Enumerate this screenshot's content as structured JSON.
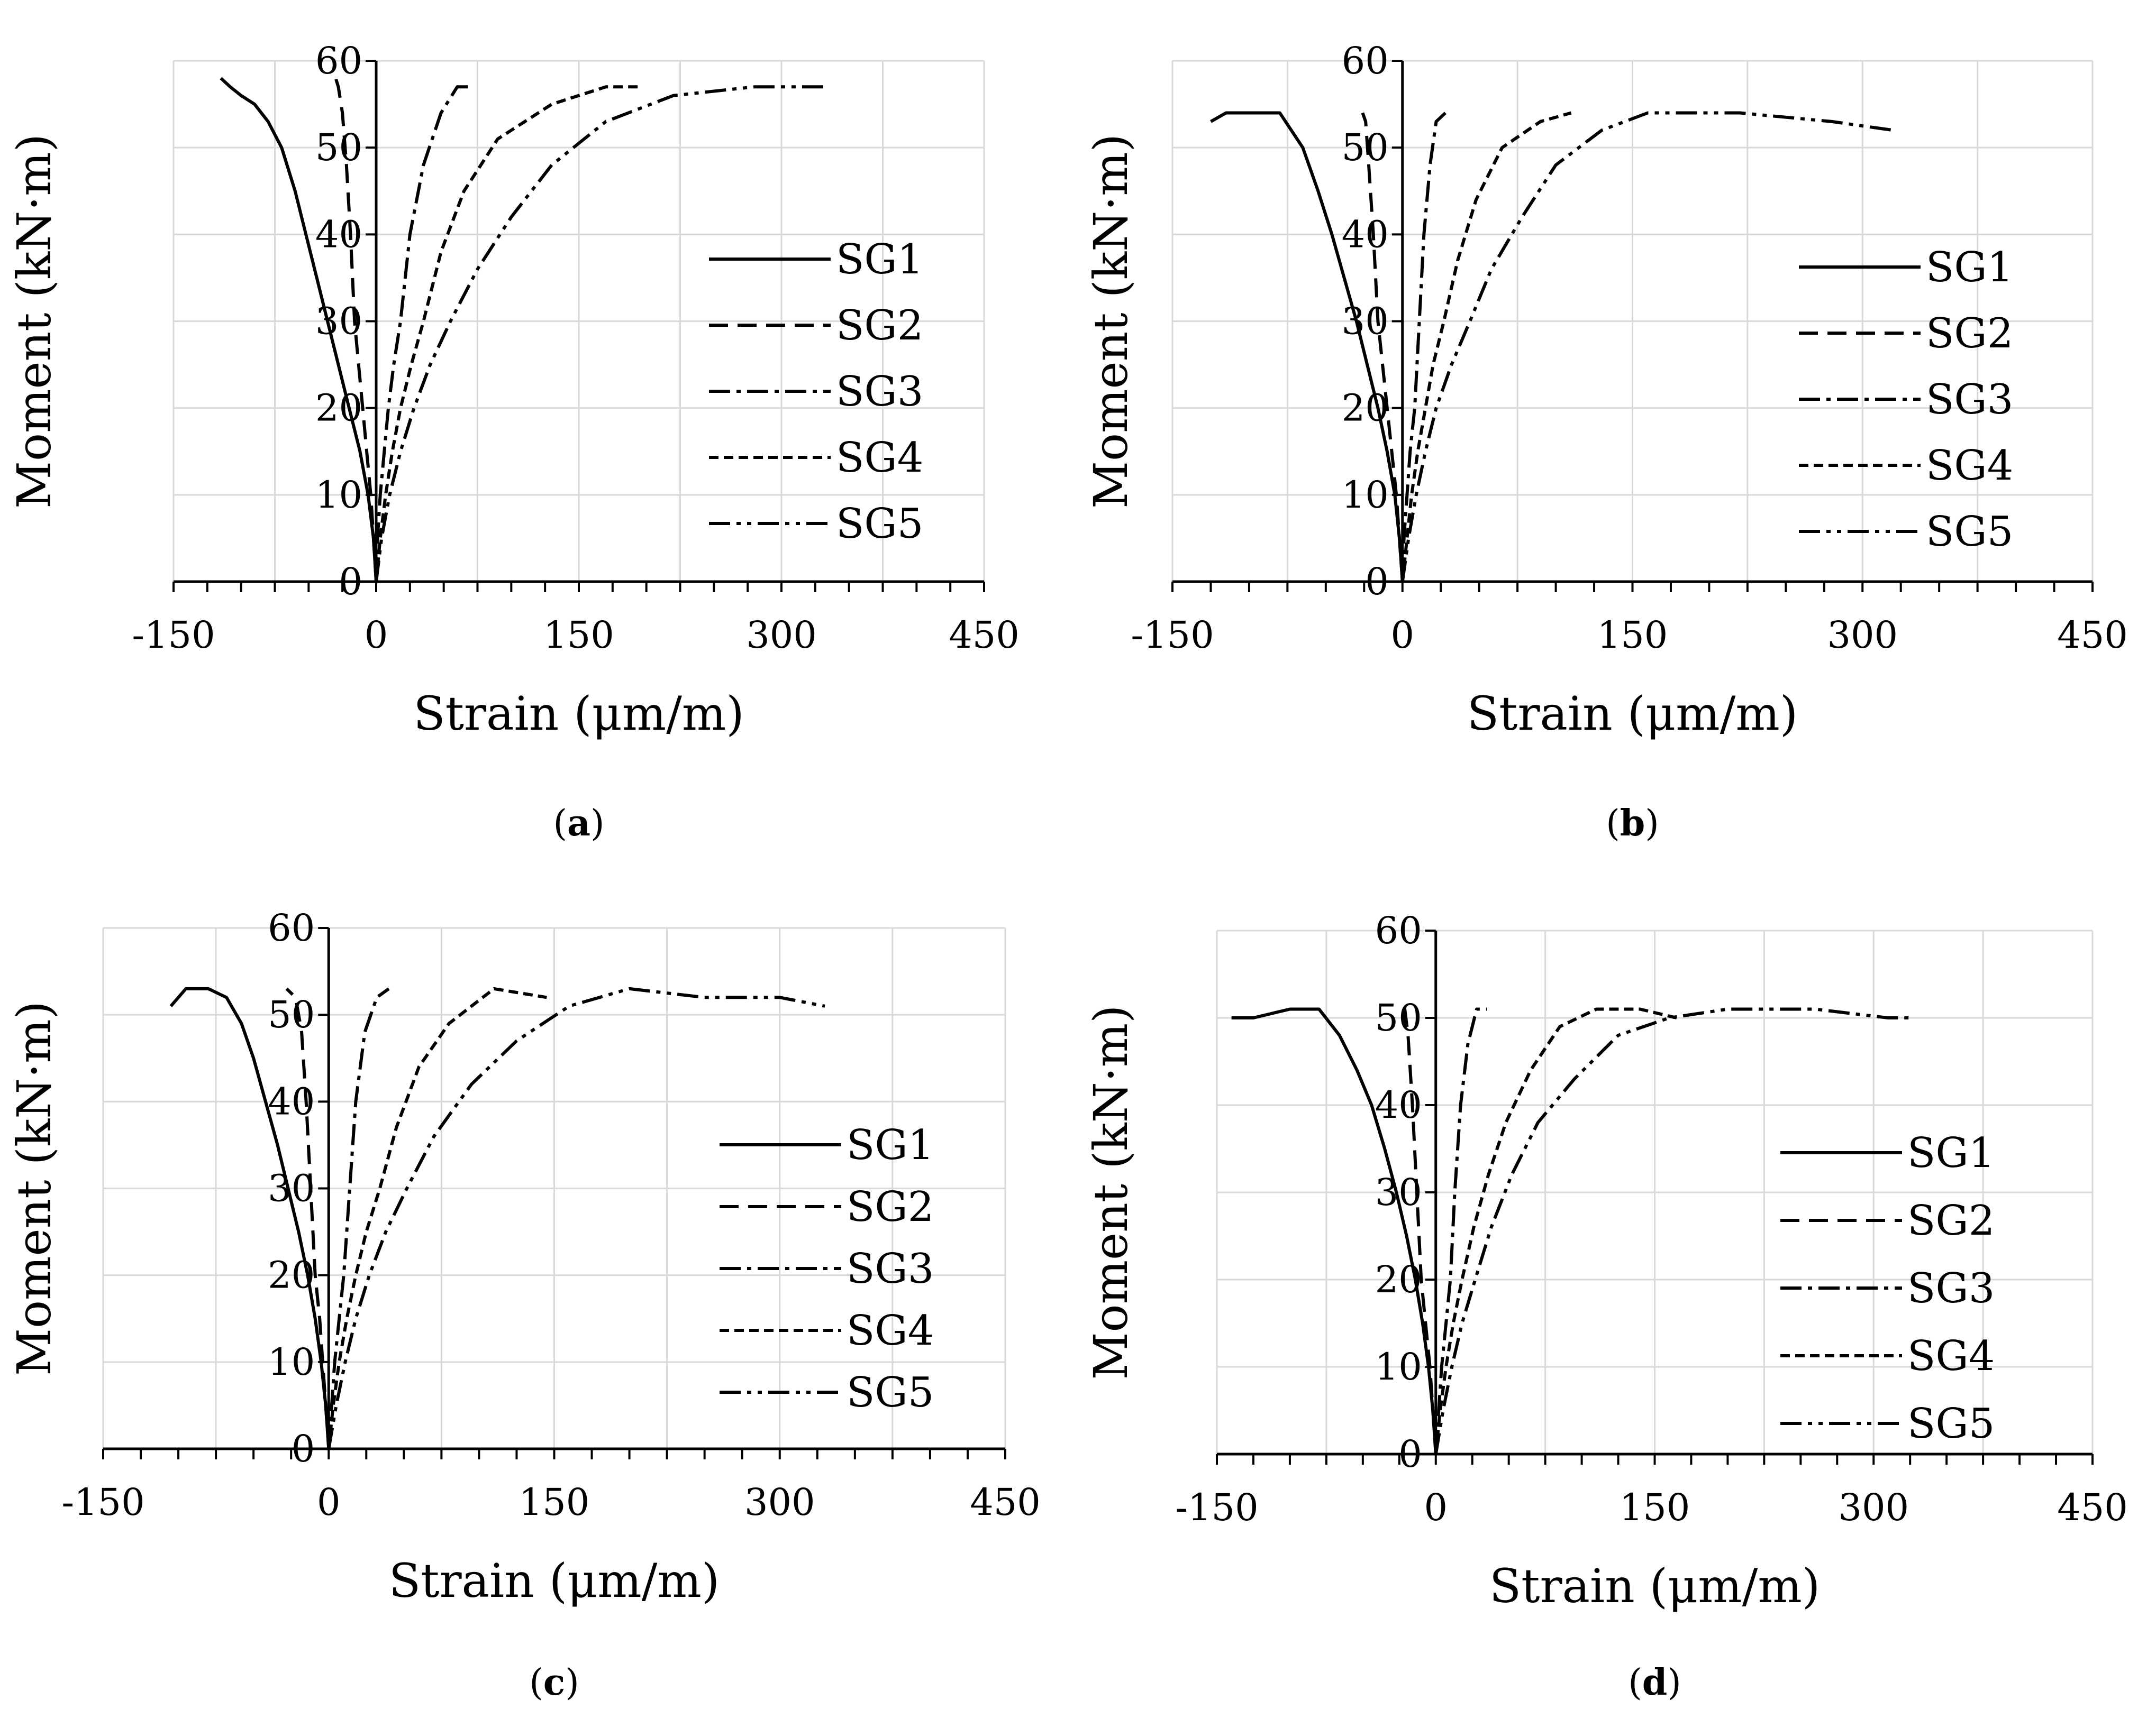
{
  "figure": {
    "panels": [
      "a",
      "b",
      "c",
      "d"
    ]
  },
  "chart_data": [
    {
      "panel": "a",
      "type": "line",
      "title": "",
      "panel_label_open": "(",
      "panel_label_letter": "a",
      "panel_label_close": ")",
      "xlabel": "Strain (μm/m)",
      "ylabel": "Moment (kN·m)",
      "xlim": [
        -150,
        450
      ],
      "ylim": [
        0,
        60
      ],
      "xticks": [
        -150,
        0,
        150,
        300,
        450
      ],
      "yticks": [
        0,
        10,
        20,
        30,
        40,
        50,
        60
      ],
      "grid": true,
      "legend_position": "right",
      "series": [
        {
          "name": "SG1",
          "style": "solid",
          "x": [
            0,
            -2,
            -6,
            -12,
            -20,
            -28,
            -36,
            -44,
            -52,
            -60,
            -70,
            -80,
            -90,
            -100,
            -108,
            -115
          ],
          "y": [
            0,
            5,
            10,
            15,
            20,
            25,
            30,
            35,
            40,
            45,
            50,
            53,
            55,
            56,
            57,
            58
          ]
        },
        {
          "name": "SG2",
          "style": "dash",
          "x": [
            0,
            -2,
            -4,
            -7,
            -10,
            -13,
            -16,
            -19,
            -22,
            -25,
            -28,
            -30
          ],
          "y": [
            0,
            5,
            10,
            15,
            20,
            25,
            30,
            40,
            48,
            54,
            57,
            58
          ]
        },
        {
          "name": "SG3",
          "style": "dashdot",
          "x": [
            0,
            1,
            3,
            6,
            9,
            13,
            18,
            25,
            35,
            48,
            60,
            70
          ],
          "y": [
            0,
            5,
            10,
            15,
            20,
            25,
            30,
            40,
            48,
            54,
            57,
            57
          ]
        },
        {
          "name": "SG4",
          "style": "shortdash",
          "x": [
            0,
            3,
            7,
            12,
            18,
            26,
            35,
            48,
            65,
            90,
            130,
            170,
            195
          ],
          "y": [
            0,
            5,
            10,
            15,
            20,
            25,
            30,
            38,
            45,
            51,
            55,
            57,
            57
          ]
        },
        {
          "name": "SG5",
          "style": "dashdotdot",
          "x": [
            0,
            4,
            10,
            18,
            28,
            40,
            55,
            75,
            100,
            130,
            170,
            220,
            280,
            320,
            335
          ],
          "y": [
            0,
            5,
            10,
            15,
            20,
            25,
            30,
            36,
            42,
            48,
            53,
            56,
            57,
            57,
            57
          ]
        }
      ]
    },
    {
      "panel": "b",
      "type": "line",
      "title": "",
      "panel_label_open": "(",
      "panel_label_letter": "b",
      "panel_label_close": ")",
      "xlabel": "Strain (μm/m)",
      "ylabel": "Moment (kN·m)",
      "xlim": [
        -150,
        450
      ],
      "ylim": [
        0,
        60
      ],
      "xticks": [
        -150,
        0,
        150,
        300,
        450
      ],
      "yticks": [
        0,
        10,
        20,
        30,
        40,
        50,
        60
      ],
      "grid": true,
      "legend_position": "right",
      "series": [
        {
          "name": "SG1",
          "style": "solid",
          "x": [
            0,
            -2,
            -5,
            -10,
            -16,
            -23,
            -30,
            -38,
            -46,
            -55,
            -65,
            -80,
            -100,
            -115,
            -125
          ],
          "y": [
            0,
            5,
            10,
            15,
            20,
            25,
            30,
            35,
            40,
            45,
            50,
            54,
            54,
            54,
            53
          ]
        },
        {
          "name": "SG2",
          "style": "dash",
          "x": [
            0,
            -2,
            -4,
            -7,
            -10,
            -13,
            -16,
            -19,
            -22,
            -24,
            -26
          ],
          "y": [
            0,
            5,
            10,
            15,
            20,
            25,
            30,
            40,
            48,
            53,
            54
          ]
        },
        {
          "name": "SG3",
          "style": "dashdot",
          "x": [
            0,
            1,
            3,
            5,
            8,
            11,
            14,
            18,
            22,
            28
          ],
          "y": [
            0,
            5,
            10,
            15,
            20,
            30,
            40,
            48,
            53,
            54
          ]
        },
        {
          "name": "SG4",
          "style": "shortdash",
          "x": [
            0,
            3,
            6,
            10,
            15,
            20,
            27,
            36,
            48,
            65,
            90,
            110
          ],
          "y": [
            0,
            5,
            10,
            15,
            20,
            25,
            30,
            37,
            44,
            50,
            53,
            54
          ]
        },
        {
          "name": "SG5",
          "style": "dashdotdot",
          "x": [
            0,
            4,
            9,
            15,
            22,
            32,
            44,
            58,
            78,
            100,
            130,
            160,
            220,
            280,
            320
          ],
          "y": [
            0,
            5,
            10,
            15,
            20,
            25,
            30,
            36,
            42,
            48,
            52,
            54,
            54,
            53,
            52
          ]
        }
      ]
    },
    {
      "panel": "c",
      "type": "line",
      "title": "",
      "panel_label_open": "(",
      "panel_label_letter": "c",
      "panel_label_close": ")",
      "xlabel": "Strain (μm/m)",
      "ylabel": "Moment (kN·m)",
      "xlim": [
        -150,
        450
      ],
      "ylim": [
        0,
        60
      ],
      "xticks": [
        -150,
        0,
        150,
        300,
        450
      ],
      "yticks": [
        0,
        10,
        20,
        30,
        40,
        50,
        60
      ],
      "grid": true,
      "legend_position": "right",
      "series": [
        {
          "name": "SG1",
          "style": "solid",
          "x": [
            0,
            -2,
            -5,
            -9,
            -14,
            -20,
            -27,
            -34,
            -42,
            -50,
            -58,
            -68,
            -80,
            -95,
            -105
          ],
          "y": [
            0,
            5,
            10,
            15,
            20,
            25,
            30,
            35,
            40,
            45,
            49,
            52,
            53,
            53,
            51
          ]
        },
        {
          "name": "SG2",
          "style": "dash",
          "x": [
            0,
            -2,
            -4,
            -6,
            -9,
            -12,
            -15,
            -18,
            -22,
            -28
          ],
          "y": [
            0,
            5,
            10,
            15,
            20,
            30,
            40,
            48,
            52,
            53
          ]
        },
        {
          "name": "SG3",
          "style": "dashdot",
          "x": [
            0,
            2,
            4,
            7,
            10,
            14,
            18,
            24,
            32,
            40
          ],
          "y": [
            0,
            5,
            10,
            15,
            20,
            30,
            40,
            48,
            52,
            53
          ]
        },
        {
          "name": "SG4",
          "style": "shortdash",
          "x": [
            0,
            3,
            7,
            12,
            18,
            25,
            34,
            45,
            60,
            80,
            110,
            145
          ],
          "y": [
            0,
            5,
            10,
            15,
            20,
            25,
            30,
            37,
            44,
            49,
            53,
            52
          ]
        },
        {
          "name": "SG5",
          "style": "dashdotdot",
          "x": [
            0,
            5,
            11,
            18,
            27,
            38,
            52,
            70,
            95,
            125,
            160,
            200,
            250,
            300,
            330
          ],
          "y": [
            0,
            5,
            10,
            15,
            20,
            25,
            30,
            36,
            42,
            47,
            51,
            53,
            52,
            52,
            51
          ]
        }
      ]
    },
    {
      "panel": "d",
      "type": "line",
      "title": "",
      "panel_label_open": "(",
      "panel_label_letter": "d",
      "panel_label_close": ")",
      "xlabel": "Strain (μm/m)",
      "ylabel": "Moment (kN·m)",
      "xlim": [
        -150,
        450
      ],
      "ylim": [
        0,
        60
      ],
      "xticks": [
        -150,
        0,
        150,
        300,
        450
      ],
      "yticks": [
        0,
        10,
        20,
        30,
        40,
        50,
        60
      ],
      "grid": true,
      "legend_position": "right",
      "series": [
        {
          "name": "SG1",
          "style": "solid",
          "x": [
            0,
            -2,
            -5,
            -9,
            -14,
            -20,
            -27,
            -35,
            -44,
            -54,
            -66,
            -80,
            -100,
            -125,
            -140
          ],
          "y": [
            0,
            5,
            10,
            15,
            20,
            25,
            30,
            35,
            40,
            44,
            48,
            51,
            51,
            50,
            50
          ]
        },
        {
          "name": "SG2",
          "style": "dash",
          "x": [
            0,
            -2,
            -4,
            -7,
            -10,
            -13,
            -16,
            -19,
            -22
          ],
          "y": [
            0,
            5,
            10,
            15,
            20,
            30,
            40,
            48,
            52
          ]
        },
        {
          "name": "SG3",
          "style": "dashdot",
          "x": [
            0,
            2,
            4,
            7,
            10,
            13,
            17,
            22,
            28,
            35
          ],
          "y": [
            0,
            5,
            10,
            15,
            20,
            30,
            40,
            47,
            51,
            51
          ]
        },
        {
          "name": "SG4",
          "style": "shortdash",
          "x": [
            0,
            3,
            7,
            12,
            18,
            26,
            36,
            48,
            65,
            85,
            110,
            140,
            165
          ],
          "y": [
            0,
            5,
            10,
            15,
            20,
            26,
            32,
            38,
            44,
            49,
            51,
            51,
            50
          ]
        },
        {
          "name": "SG5",
          "style": "dashdotdot",
          "x": [
            0,
            5,
            11,
            18,
            27,
            38,
            52,
            70,
            95,
            125,
            160,
            200,
            260,
            310,
            325
          ],
          "y": [
            0,
            5,
            10,
            15,
            20,
            26,
            32,
            38,
            43,
            48,
            50,
            51,
            51,
            50,
            50
          ]
        }
      ]
    }
  ]
}
